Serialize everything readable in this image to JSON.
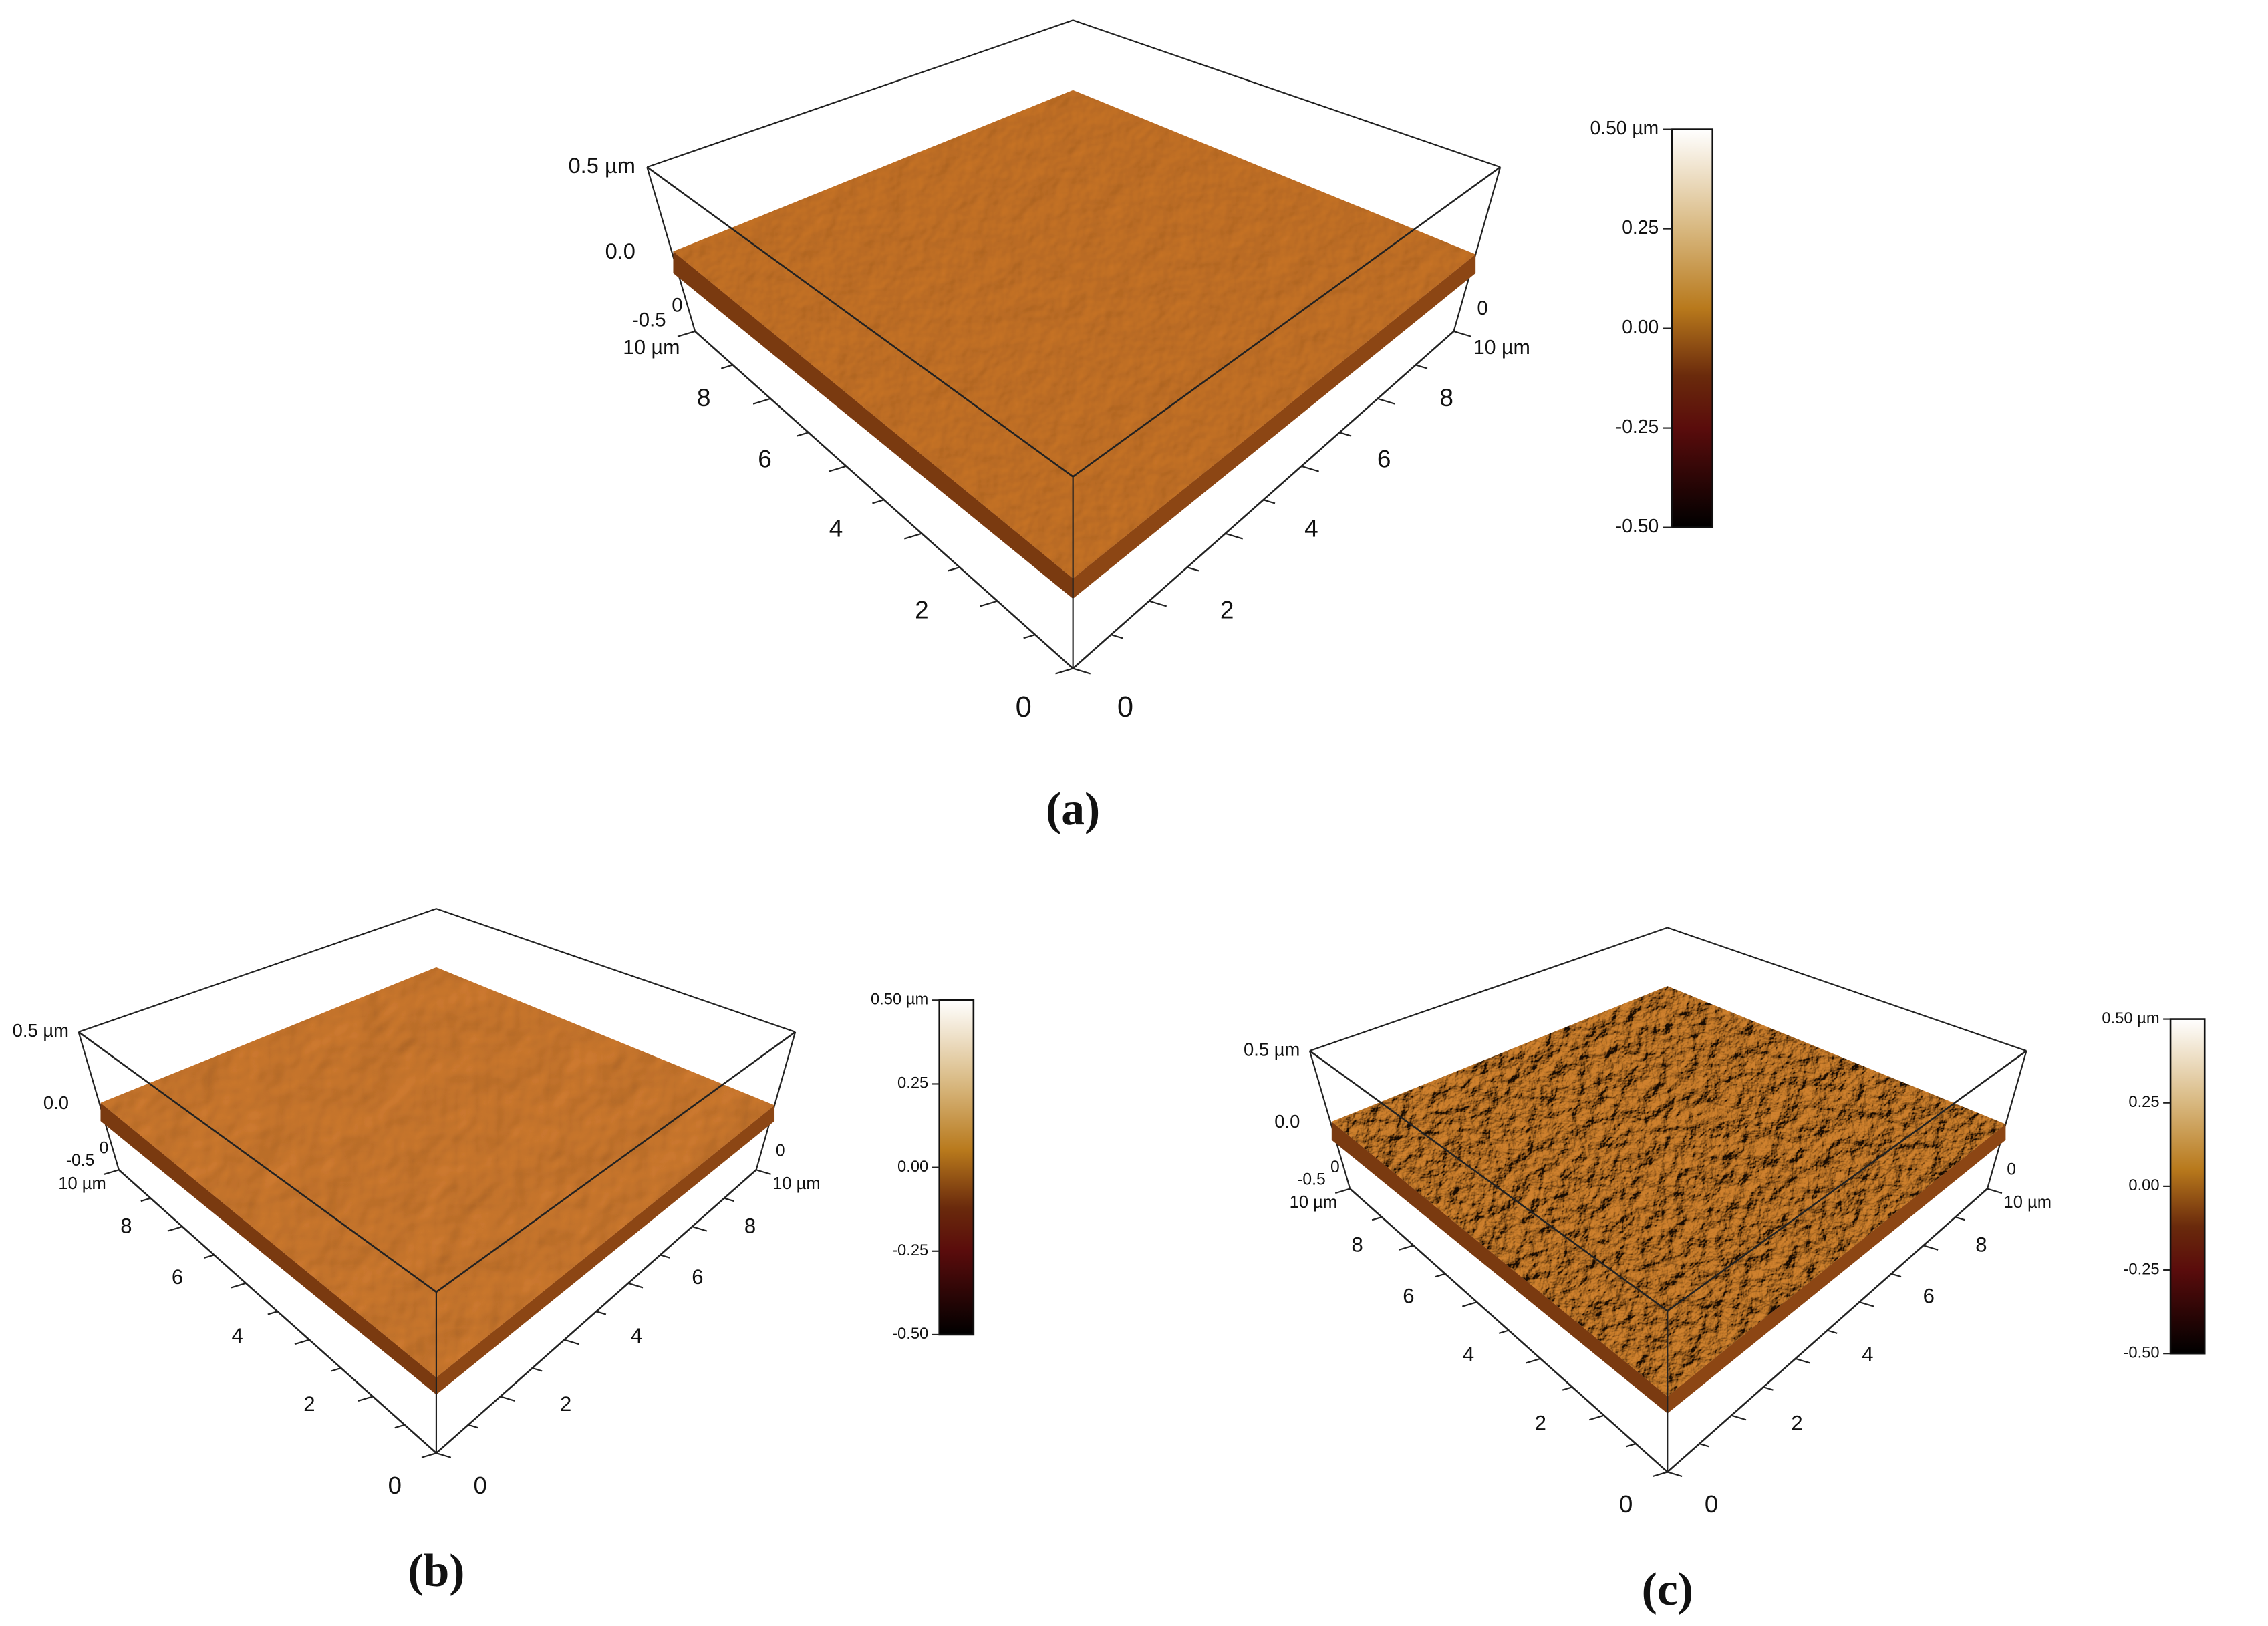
{
  "panels": [
    {
      "caption": "(a)",
      "z_ticks": [
        "0.5 µm",
        "0.0",
        "-0.5"
      ],
      "corner_left": "0",
      "corner_right": "0",
      "left_axis_ticks": [
        "0",
        "2",
        "4",
        "6",
        "8",
        "10 µm"
      ],
      "right_axis_ticks": [
        "0",
        "2",
        "4",
        "6",
        "8",
        "10 µm"
      ],
      "colorbar_ticks": [
        "0.50 µm",
        "0.25",
        "0.00",
        "-0.25",
        "-0.50"
      ]
    },
    {
      "caption": "(b)",
      "z_ticks": [
        "0.5 µm",
        "0.0",
        "-0.5"
      ],
      "corner_left": "0",
      "corner_right": "0",
      "left_axis_ticks": [
        "0",
        "2",
        "4",
        "6",
        "8",
        "10 µm"
      ],
      "right_axis_ticks": [
        "0",
        "2",
        "4",
        "6",
        "8",
        "10 µm"
      ],
      "colorbar_ticks": [
        "0.50 µm",
        "0.25",
        "0.00",
        "-0.25",
        "-0.50"
      ]
    },
    {
      "caption": "(c)",
      "z_ticks": [
        "0.5 µm",
        "0.0",
        "-0.5"
      ],
      "corner_left": "0",
      "corner_right": "0",
      "left_axis_ticks": [
        "0",
        "2",
        "4",
        "6",
        "8",
        "10 µm"
      ],
      "right_axis_ticks": [
        "0",
        "2",
        "4",
        "6",
        "8",
        "10 µm"
      ],
      "colorbar_ticks": [
        "0.50 µm",
        "0.25",
        "0.00",
        "-0.25",
        "-0.50"
      ]
    }
  ]
}
